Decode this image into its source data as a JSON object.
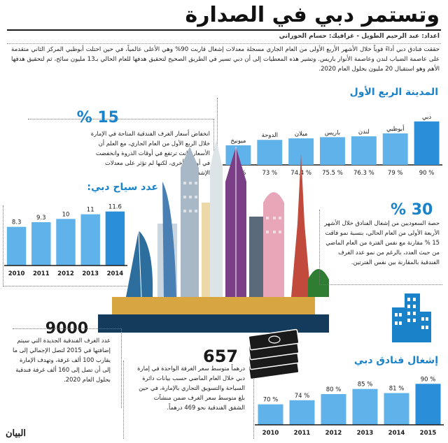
{
  "title": "وتستمر دبي في الصدارة",
  "credits": "اعداد: عبد الرحيم الطويل - غرافيك: حسام الحوراني",
  "intro": "حققت فنادق دبي أداءً قوياً خلال الأشهر الأربع الأولى من العام الجاري مسجلة معدلات إشغال قاربت 90% وهي الأعلى عالمياً، في حين احتلت أبوظبي المركز الثاني متقدمة على عاصمة الضباب لندن وعاصمة الأنوار باريس. وتشير هذه المعطيات إلى أن دبي تسير في الطريق الصحيح لتحقيق هدفها للعام الحالي بـ13 مليون سائح، ثم لتحقيق هدفها الأهم وهو استقبال 20 مليون بحلول العام 2020.",
  "cities_section": {
    "title": "المدينة الربع الأول"
  },
  "drop_section": {
    "number": "15 %",
    "text": "انخفاض أسعار الغرف الفندقية المتاحة في الإمارة خلال الربع الأول من العام الجاري، مع العلم أن الأسعار كانت ترتفع في أوقات الذروة وانخفضت في أوقات أخرى، لكنها لم تؤثر على معدلات الإشغال."
  },
  "tourists_section": {
    "title": "عدد سياح دبي:"
  },
  "saudi_section": {
    "number": "30 %",
    "text": "حصة السعوديين من إشغال الفنادق خلال الأشهر الأربعة الأولى من العام الحالي، بنسبة نمو فاقت 15 % مقارنة مع نفس الفترة من العام الماضي من حيث العدد، بالرغم من نمو عدد الغرف الفندقية بالمقارنة بين نفس الفترتين."
  },
  "rooms_section": {
    "number": "9000",
    "text": "عدد الغرف الفندقية الجديدة التي سيتم إضافتها في 2015 لتصل الإجمالي إلى ما يقارب 100 ألف غرفة، وتهدف الإمارة إلى أن تصل إلى 160 ألف غرفة فندقية بحلول العام 2020."
  },
  "rate_section": {
    "number": "657",
    "text": "درهماً متوسط سعر الغرفة الواحدة في إمارة دبي خلال العام الماضي حسب بيانات دائرة السياحة والتسويق التجاري بالإمارة، في حين بلغ متوسط سعر الغرف ضمن منشآت الشقق الفندقية نحو 469 درهماً."
  },
  "occupancy_section": {
    "title": "إشغال فنادق دبي"
  },
  "logo": "البيان",
  "colors": {
    "accent": "#1a82c9",
    "bar": "#2a8fd8",
    "bar_light": "#5fb3ea"
  },
  "chart_data": [
    {
      "type": "bar",
      "title": "المدينة الربع الأول",
      "categories": [
        "دبي",
        "أبوظبي",
        "لندن",
        "باريس",
        "ميلان",
        "الدوحة",
        "ميونيخ"
      ],
      "value_labels": [
        "% 90",
        "% 79",
        "% 76.3",
        "% 75.5",
        "% 74.4",
        "% 73",
        "% 68"
      ],
      "values": [
        90,
        79,
        76.3,
        75.5,
        74.4,
        73,
        68
      ],
      "ylim": [
        50,
        95
      ]
    },
    {
      "type": "bar",
      "title": "عدد سياح دبي:",
      "categories": [
        "2010",
        "2011",
        "2012",
        "2013",
        "2014"
      ],
      "value_labels": [
        "8.3",
        "9.3",
        "10",
        "11",
        "11.6"
      ],
      "values": [
        8.3,
        9.3,
        10,
        11,
        11.6
      ],
      "ylim": [
        0,
        12
      ]
    },
    {
      "type": "bar",
      "title": "إشغال فنادق دبي",
      "categories": [
        "2010",
        "2011",
        "2012",
        "2013",
        "2014",
        "2015"
      ],
      "value_labels": [
        "% 70",
        "% 74",
        "% 80",
        "% 85",
        "% 81",
        "% 90"
      ],
      "values": [
        70,
        74,
        80,
        85,
        81,
        90
      ],
      "ylim": [
        50,
        95
      ]
    }
  ]
}
